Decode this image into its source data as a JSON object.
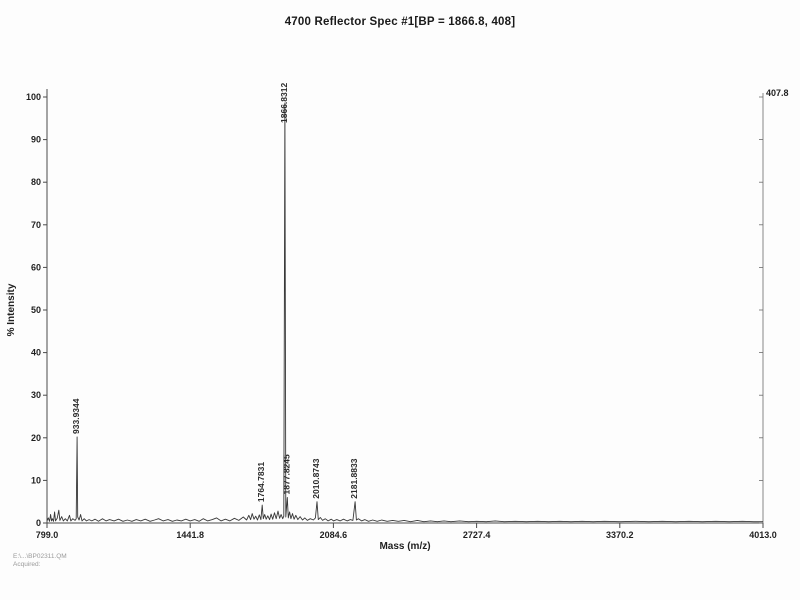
{
  "colors": {
    "paper": "#fdfdfd",
    "ink": "#1f1f1f",
    "trace": "#383838"
  },
  "footer": {
    "line1": "E:\\...\\BP02311.QM",
    "line2": "Acquired:"
  },
  "chart_data": {
    "type": "line",
    "title": "4700 Reflector Spec #1[BP = 1866.8, 408]",
    "xlabel": "Mass (m/z)",
    "ylabel": "% Intensity",
    "xlim": [
      799.0,
      4013.0
    ],
    "ylim": [
      0,
      100
    ],
    "grid": false,
    "legend": "none",
    "x_ticks": [
      "799.0",
      "1441.8",
      "2084.6",
      "2727.4",
      "3370.2",
      "4013.0"
    ],
    "y_ticks": [
      "0",
      "10",
      "20",
      "30",
      "40",
      "50",
      "60",
      "70",
      "80",
      "90",
      "100"
    ],
    "right_axis_top_label": "407.8",
    "base_peak": {
      "mz": 1866.8,
      "counts": 408
    },
    "labeled_peaks": [
      {
        "mz": 933.9344,
        "intensity": 20.2,
        "label": "933.9344"
      },
      {
        "mz": 1764.7831,
        "intensity": 4.2,
        "label": "1764.7831"
      },
      {
        "mz": 1866.8312,
        "intensity": 98.6,
        "label": "1866.8312"
      },
      {
        "mz": 1877.8245,
        "intensity": 6.0,
        "label": "1877.8245"
      },
      {
        "mz": 2010.8743,
        "intensity": 5.0,
        "label": "2010.8743"
      },
      {
        "mz": 2181.8833,
        "intensity": 5.0,
        "label": "2181.8833"
      }
    ],
    "trace": [
      [
        799,
        0.5
      ],
      [
        805,
        1.2
      ],
      [
        810,
        0.4
      ],
      [
        815,
        2.0
      ],
      [
        819,
        0.5
      ],
      [
        823,
        1.0
      ],
      [
        828,
        0.4
      ],
      [
        833,
        2.6
      ],
      [
        837,
        0.5
      ],
      [
        845,
        1.1
      ],
      [
        852,
        3.0
      ],
      [
        857,
        0.6
      ],
      [
        865,
        1.5
      ],
      [
        872,
        0.5
      ],
      [
        881,
        1.0
      ],
      [
        890,
        0.5
      ],
      [
        900,
        1.8
      ],
      [
        906,
        0.5
      ],
      [
        915,
        1.0
      ],
      [
        925,
        0.6
      ],
      [
        930,
        1.0
      ],
      [
        933.93,
        20.2
      ],
      [
        937,
        1.4
      ],
      [
        943,
        0.7
      ],
      [
        950,
        2.0
      ],
      [
        956,
        0.5
      ],
      [
        966,
        1.0
      ],
      [
        976,
        0.5
      ],
      [
        988,
        0.8
      ],
      [
        1000,
        0.5
      ],
      [
        1015,
        0.9
      ],
      [
        1030,
        0.4
      ],
      [
        1048,
        1.0
      ],
      [
        1064,
        0.5
      ],
      [
        1080,
        0.8
      ],
      [
        1100,
        0.5
      ],
      [
        1120,
        0.9
      ],
      [
        1140,
        0.4
      ],
      [
        1160,
        0.7
      ],
      [
        1180,
        0.4
      ],
      [
        1200,
        0.8
      ],
      [
        1220,
        0.5
      ],
      [
        1240,
        0.9
      ],
      [
        1262,
        0.4
      ],
      [
        1282,
        0.7
      ],
      [
        1300,
        1.0
      ],
      [
        1320,
        0.5
      ],
      [
        1342,
        0.8
      ],
      [
        1362,
        0.4
      ],
      [
        1382,
        0.7
      ],
      [
        1402,
        0.5
      ],
      [
        1422,
        0.9
      ],
      [
        1442,
        0.5
      ],
      [
        1462,
        0.8
      ],
      [
        1482,
        0.4
      ],
      [
        1500,
        1.0
      ],
      [
        1520,
        0.5
      ],
      [
        1541,
        0.8
      ],
      [
        1560,
        1.2
      ],
      [
        1580,
        0.5
      ],
      [
        1600,
        0.9
      ],
      [
        1620,
        0.5
      ],
      [
        1640,
        1.1
      ],
      [
        1660,
        0.6
      ],
      [
        1680,
        1.4
      ],
      [
        1695,
        0.7
      ],
      [
        1705,
        1.8
      ],
      [
        1713,
        0.8
      ],
      [
        1720,
        2.2
      ],
      [
        1728,
        0.9
      ],
      [
        1736,
        1.6
      ],
      [
        1744,
        0.7
      ],
      [
        1752,
        1.9
      ],
      [
        1759,
        0.8
      ],
      [
        1764.78,
        4.2
      ],
      [
        1770,
        1.0
      ],
      [
        1776,
        2.0
      ],
      [
        1783,
        0.9
      ],
      [
        1790,
        1.7
      ],
      [
        1798,
        0.8
      ],
      [
        1805,
        2.1
      ],
      [
        1812,
        0.9
      ],
      [
        1820,
        2.4
      ],
      [
        1828,
        1.0
      ],
      [
        1836,
        2.8
      ],
      [
        1843,
        1.1
      ],
      [
        1850,
        2.0
      ],
      [
        1857,
        1.0
      ],
      [
        1862,
        1.6
      ],
      [
        1866.83,
        98.6
      ],
      [
        1871,
        1.4
      ],
      [
        1877.82,
        6.0
      ],
      [
        1882,
        1.2
      ],
      [
        1888,
        2.6
      ],
      [
        1894,
        1.0
      ],
      [
        1901,
        2.2
      ],
      [
        1908,
        0.9
      ],
      [
        1916,
        1.8
      ],
      [
        1925,
        0.8
      ],
      [
        1935,
        1.5
      ],
      [
        1946,
        0.7
      ],
      [
        1956,
        1.2
      ],
      [
        1968,
        0.6
      ],
      [
        1981,
        1.0
      ],
      [
        1995,
        0.7
      ],
      [
        2004,
        1.2
      ],
      [
        2010.87,
        5.0
      ],
      [
        2017,
        0.8
      ],
      [
        2026,
        1.3
      ],
      [
        2036,
        0.6
      ],
      [
        2048,
        1.0
      ],
      [
        2061,
        0.5
      ],
      [
        2075,
        0.9
      ],
      [
        2085,
        0.5
      ],
      [
        2100,
        0.8
      ],
      [
        2115,
        0.5
      ],
      [
        2130,
        0.9
      ],
      [
        2146,
        0.5
      ],
      [
        2161,
        0.8
      ],
      [
        2172,
        0.6
      ],
      [
        2181.88,
        5.0
      ],
      [
        2188,
        0.7
      ],
      [
        2197,
        1.0
      ],
      [
        2211,
        0.5
      ],
      [
        2226,
        0.8
      ],
      [
        2242,
        0.4
      ],
      [
        2261,
        0.7
      ],
      [
        2281,
        0.4
      ],
      [
        2302,
        0.7
      ],
      [
        2326,
        0.4
      ],
      [
        2351,
        0.6
      ],
      [
        2376,
        0.4
      ],
      [
        2402,
        0.6
      ],
      [
        2431,
        0.3
      ],
      [
        2461,
        0.6
      ],
      [
        2491,
        0.3
      ],
      [
        2521,
        0.5
      ],
      [
        2551,
        0.3
      ],
      [
        2581,
        0.5
      ],
      [
        2612,
        0.3
      ],
      [
        2651,
        0.5
      ],
      [
        2691,
        0.3
      ],
      [
        2728,
        0.4
      ],
      [
        2771,
        0.3
      ],
      [
        2811,
        0.5
      ],
      [
        2851,
        0.3
      ],
      [
        2901,
        0.4
      ],
      [
        2951,
        0.3
      ],
      [
        3001,
        0.4
      ],
      [
        3051,
        0.3
      ],
      [
        3101,
        0.4
      ],
      [
        3151,
        0.3
      ],
      [
        3201,
        0.4
      ],
      [
        3251,
        0.3
      ],
      [
        3301,
        0.4
      ],
      [
        3371,
        0.3
      ],
      [
        3441,
        0.4
      ],
      [
        3501,
        0.3
      ],
      [
        3561,
        0.4
      ],
      [
        3621,
        0.3
      ],
      [
        3681,
        0.4
      ],
      [
        3741,
        0.3
      ],
      [
        3801,
        0.4
      ],
      [
        3861,
        0.3
      ],
      [
        3921,
        0.4
      ],
      [
        3971,
        0.3
      ],
      [
        4013,
        0.3
      ]
    ]
  }
}
